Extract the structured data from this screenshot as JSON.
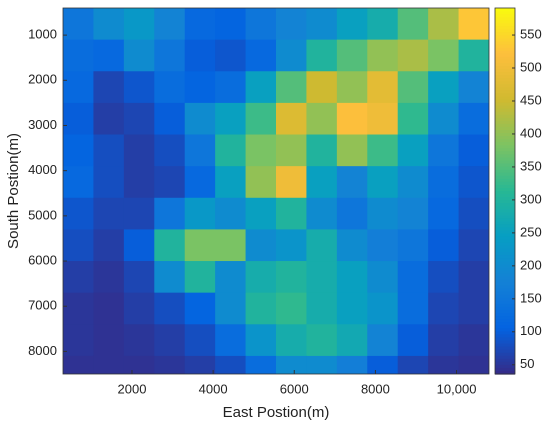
{
  "chart_data": {
    "type": "heatmap",
    "xlabel": "East Postion(m)",
    "ylabel": "South Postion(m)",
    "colormap": "parula",
    "x": [
      675,
      1425,
      2175,
      2925,
      3675,
      4425,
      5175,
      5925,
      6675,
      7425,
      8175,
      8925,
      9675,
      10425
    ],
    "y": [
      750,
      1450,
      2150,
      2850,
      3550,
      4250,
      4950,
      5650,
      6350,
      7050,
      7750,
      8450
    ],
    "z": [
      [
        150,
        200,
        230,
        180,
        120,
        110,
        150,
        180,
        200,
        250,
        280,
        350,
        420,
        530
      ],
      [
        130,
        120,
        200,
        150,
        100,
        90,
        120,
        200,
        300,
        350,
        400,
        420,
        380,
        300
      ],
      [
        120,
        70,
        90,
        130,
        110,
        130,
        250,
        350,
        450,
        400,
        480,
        350,
        250,
        180
      ],
      [
        100,
        60,
        70,
        100,
        200,
        250,
        330,
        470,
        400,
        520,
        500,
        320,
        200,
        130
      ],
      [
        110,
        80,
        60,
        80,
        150,
        300,
        380,
        400,
        300,
        400,
        330,
        250,
        150,
        100
      ],
      [
        120,
        80,
        60,
        70,
        120,
        250,
        400,
        500,
        250,
        180,
        250,
        200,
        130,
        90
      ],
      [
        90,
        70,
        70,
        150,
        230,
        200,
        250,
        300,
        200,
        150,
        200,
        180,
        120,
        80
      ],
      [
        80,
        60,
        100,
        300,
        380,
        380,
        200,
        220,
        280,
        200,
        170,
        150,
        100,
        70
      ],
      [
        60,
        50,
        70,
        200,
        300,
        200,
        280,
        300,
        280,
        250,
        200,
        130,
        80,
        60
      ],
      [
        50,
        45,
        60,
        80,
        110,
        200,
        300,
        320,
        280,
        250,
        220,
        130,
        70,
        60
      ],
      [
        50,
        45,
        50,
        60,
        80,
        130,
        220,
        280,
        300,
        270,
        180,
        100,
        60,
        50
      ],
      [
        45,
        45,
        45,
        50,
        60,
        80,
        130,
        200,
        200,
        170,
        100,
        70,
        50,
        45
      ]
    ],
    "xlim": [
      300,
      10800
    ],
    "ylim": [
      8500,
      400
    ],
    "xticks": [
      2000,
      4000,
      6000,
      8000,
      {
        "value": 10000,
        "label": "10,000"
      }
    ],
    "yticks": [
      1000,
      2000,
      3000,
      4000,
      5000,
      6000,
      7000,
      8000
    ],
    "clim": [
      36,
      591
    ],
    "cticks": [
      50,
      100,
      150,
      200,
      250,
      300,
      350,
      400,
      450,
      500,
      550
    ]
  }
}
